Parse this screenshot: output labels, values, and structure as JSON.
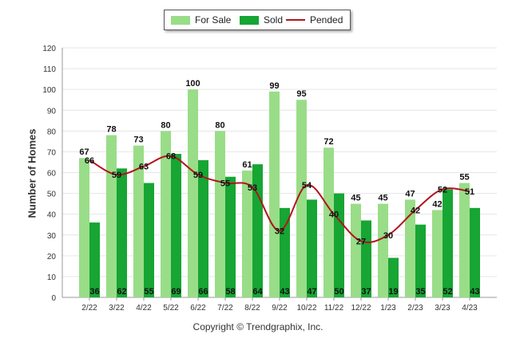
{
  "chart_data": {
    "type": "bar",
    "ylabel": "Number of Homes",
    "ylim": [
      0,
      120
    ],
    "yticks": [
      0,
      10,
      20,
      30,
      40,
      50,
      60,
      70,
      80,
      90,
      100,
      110,
      120
    ],
    "categories": [
      "2/22",
      "3/22",
      "4/22",
      "5/22",
      "6/22",
      "7/22",
      "8/22",
      "9/22",
      "10/22",
      "11/22",
      "12/22",
      "1/23",
      "2/23",
      "3/23",
      "4/23"
    ],
    "series": [
      {
        "name": "For Sale",
        "kind": "bar",
        "color": "#99dd88",
        "values": [
          67,
          78,
          73,
          80,
          100,
          80,
          61,
          99,
          95,
          72,
          45,
          45,
          47,
          42,
          55
        ]
      },
      {
        "name": "Sold",
        "kind": "bar",
        "color": "#17a534",
        "values": [
          36,
          62,
          55,
          69,
          66,
          58,
          64,
          43,
          47,
          50,
          37,
          19,
          35,
          52,
          43
        ]
      },
      {
        "name": "Pended",
        "kind": "line",
        "color": "#b3141c",
        "values": [
          66,
          59,
          63,
          68,
          59,
          55,
          53,
          32,
          54,
          40,
          27,
          30,
          42,
          52,
          51
        ]
      }
    ],
    "legend_position": "top-center",
    "grid": true
  },
  "footer": {
    "copyright": "Copyright © Trendgraphix, Inc."
  }
}
